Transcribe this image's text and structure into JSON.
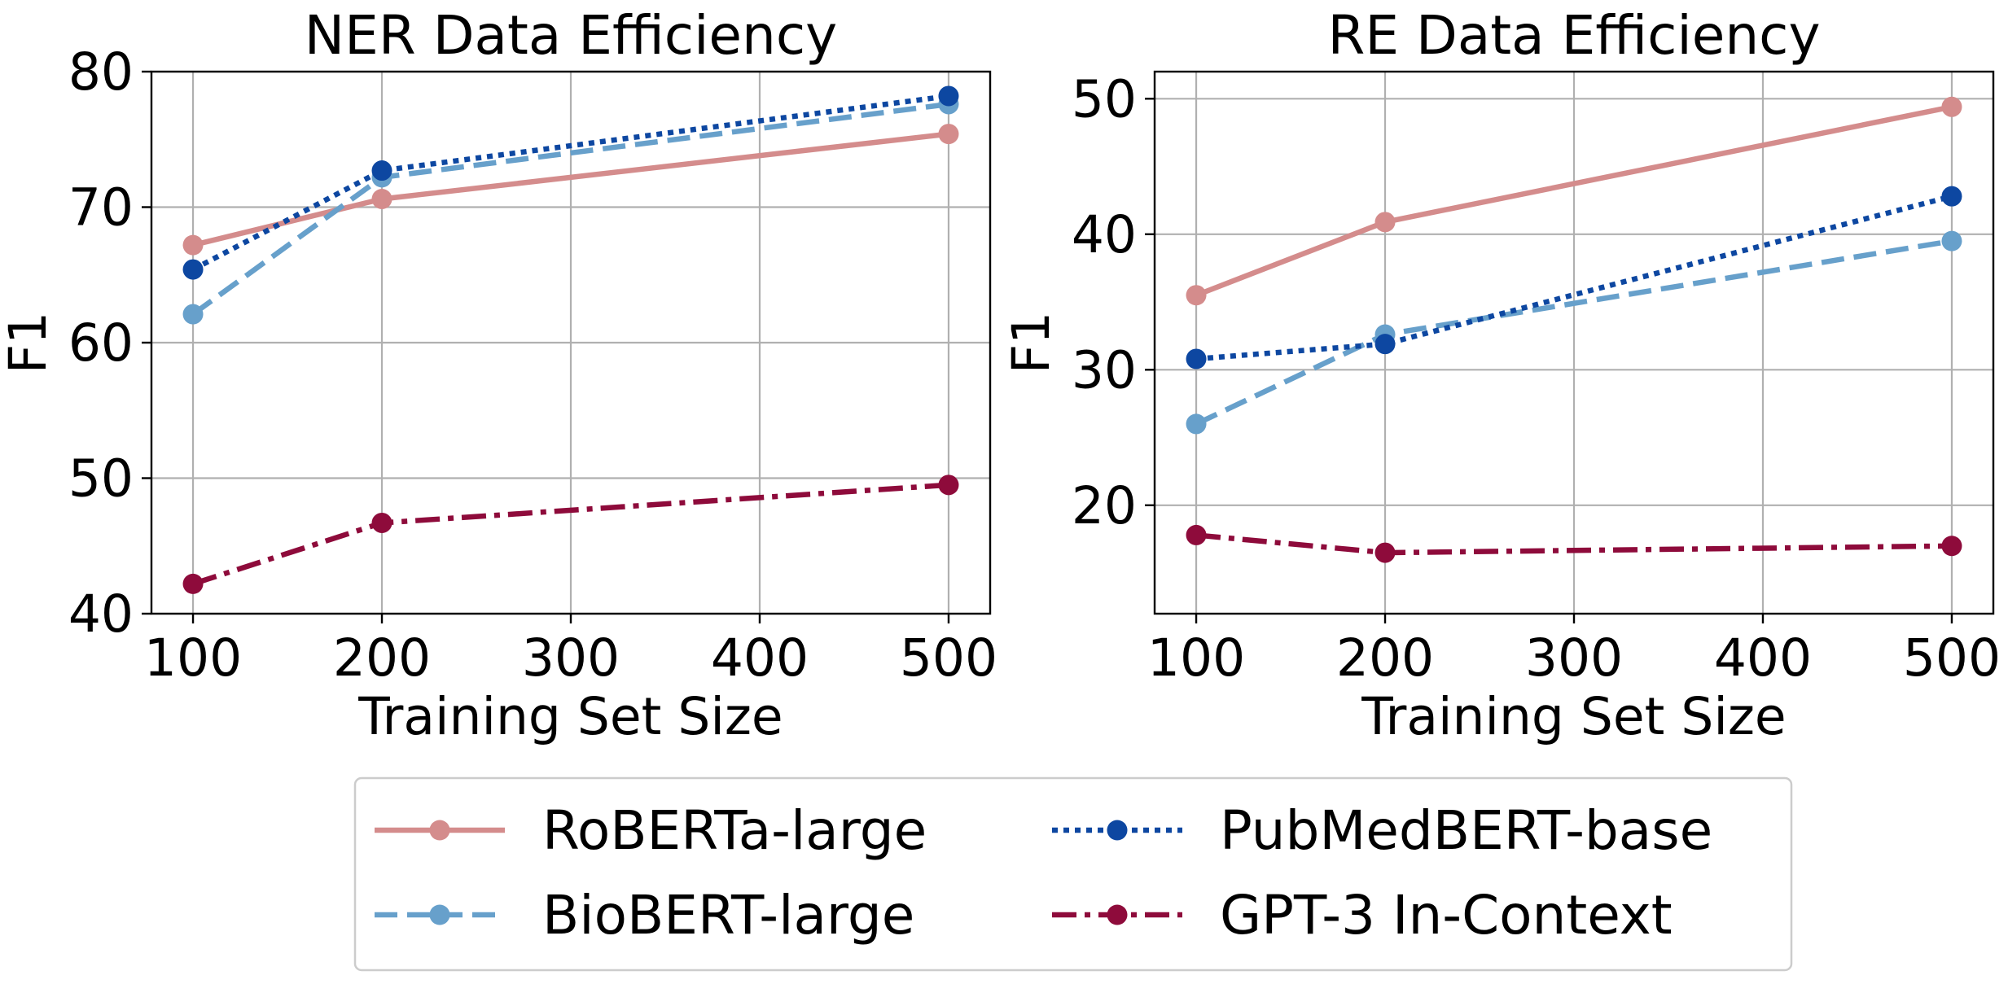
{
  "chart_data": [
    {
      "type": "line",
      "title": "NER Data Efficiency",
      "xlabel": "Training Set Size",
      "ylabel": "F1",
      "x": [
        100,
        200,
        500
      ],
      "xlim": [
        78,
        522
      ],
      "ylim": [
        40,
        80
      ],
      "xticks": [
        100,
        200,
        300,
        400,
        500
      ],
      "yticks": [
        40,
        50,
        60,
        70,
        80
      ],
      "grid": true,
      "series": [
        {
          "name": "RoBERTa-large",
          "values": [
            67.2,
            70.6,
            75.4
          ]
        },
        {
          "name": "BioBERT-large",
          "values": [
            62.1,
            72.2,
            77.6
          ]
        },
        {
          "name": "PubMedBERT-base",
          "values": [
            65.4,
            72.7,
            78.2
          ]
        },
        {
          "name": "GPT-3 In-Context",
          "values": [
            42.2,
            46.7,
            49.5
          ]
        }
      ]
    },
    {
      "type": "line",
      "title": "RE Data Efficiency",
      "xlabel": "Training Set Size",
      "ylabel": "F1",
      "x": [
        100,
        200,
        500
      ],
      "xlim": [
        78,
        522
      ],
      "ylim": [
        12,
        52
      ],
      "xticks": [
        100,
        200,
        300,
        400,
        500
      ],
      "yticks": [
        20,
        30,
        40,
        50
      ],
      "grid": true,
      "series": [
        {
          "name": "RoBERTa-large",
          "values": [
            35.5,
            40.9,
            49.4
          ]
        },
        {
          "name": "BioBERT-large",
          "values": [
            26.0,
            32.6,
            39.5
          ]
        },
        {
          "name": "PubMedBERT-base",
          "values": [
            30.8,
            31.9,
            42.8
          ]
        },
        {
          "name": "GPT-3 In-Context",
          "values": [
            17.8,
            16.5,
            17.0
          ]
        }
      ]
    }
  ],
  "legend": {
    "placement": "bottom-center",
    "entries": [
      {
        "name": "RoBERTa-large",
        "color": "#d48c8c",
        "linestyle": "solid"
      },
      {
        "name": "PubMedBERT-base",
        "color": "#0d47a1",
        "linestyle": "dotted"
      },
      {
        "name": "BioBERT-large",
        "color": "#67a0cb",
        "linestyle": "dashed"
      },
      {
        "name": "GPT-3 In-Context",
        "color": "#8e0b3b",
        "linestyle": "dashdot"
      }
    ]
  },
  "styles": {
    "RoBERTa-large": {
      "color": "#d48c8c",
      "linestyle": "solid"
    },
    "BioBERT-large": {
      "color": "#67a0cb",
      "linestyle": "dashed"
    },
    "PubMedBERT-base": {
      "color": "#0d47a1",
      "linestyle": "dotted"
    },
    "GPT-3 In-Context": {
      "color": "#8e0b3b",
      "linestyle": "dashdot"
    }
  }
}
